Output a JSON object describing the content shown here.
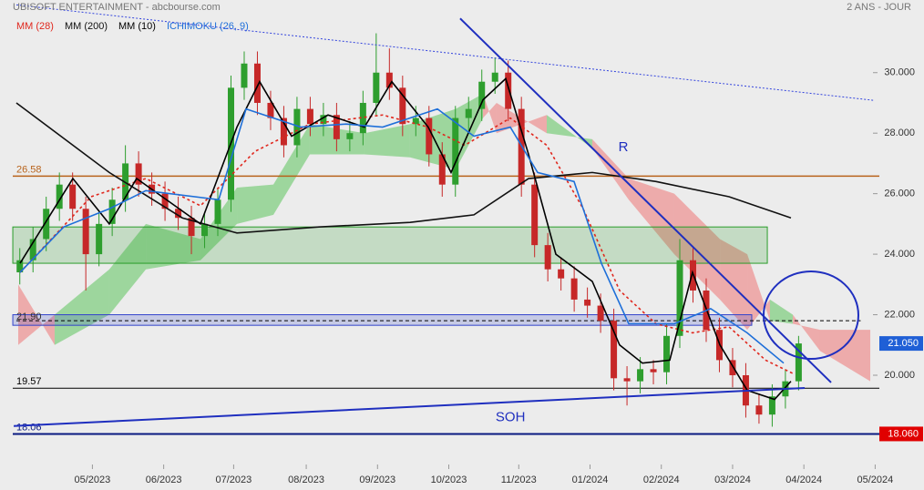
{
  "chart_data": {
    "type": "candlestick",
    "title": "UBISOFT ENTERTAINMENT - abcbourse.com",
    "subtitle": "2 ANS - JOUR",
    "xlim": [
      0,
      70
    ],
    "ylim": [
      17.05,
      32.4
    ],
    "xticks": [
      {
        "value": 7,
        "label": "05/2023"
      },
      {
        "value": 12.4,
        "label": "06/2023"
      },
      {
        "value": 17.7,
        "label": "07/2023"
      },
      {
        "value": 23.2,
        "label": "08/2023"
      },
      {
        "value": 28.6,
        "label": "09/2023"
      },
      {
        "value": 34,
        "label": "10/2023"
      },
      {
        "value": 39.3,
        "label": "11/2023"
      },
      {
        "value": 44.7,
        "label": "01/2024"
      },
      {
        "value": 50.1,
        "label": "02/2024"
      },
      {
        "value": 55.5,
        "label": "03/2024"
      },
      {
        "value": 60.9,
        "label": "04/2024"
      },
      {
        "value": 66.3,
        "label": "05/2024"
      }
    ],
    "yticks": [
      {
        "value": 20,
        "label": "20.000"
      },
      {
        "value": 22,
        "label": "22.000"
      },
      {
        "value": 24,
        "label": "24.000"
      },
      {
        "value": 26,
        "label": "26.000"
      },
      {
        "value": 28,
        "label": "28.000"
      },
      {
        "value": 30,
        "label": "30.000"
      }
    ],
    "candles": {
      "up_color": "#2e9e2e",
      "down_color": "#c62828",
      "x": [
        1.5,
        2.5,
        3.5,
        4.5,
        5.5,
        6.5,
        7.5,
        8.5,
        9.5,
        10.5,
        11.5,
        12.5,
        13.5,
        14.5,
        15.5,
        16.5,
        17.5,
        18.5,
        19.5,
        20.5,
        21.5,
        22.5,
        23.5,
        24.5,
        25.5,
        26.5,
        27.5,
        28.5,
        29.5,
        30.5,
        31.5,
        32.5,
        33.5,
        34.5,
        35.5,
        36.5,
        37.5,
        38.5,
        39.5,
        40.5,
        41.5,
        42.5,
        43.5,
        44.5,
        45.5,
        46.5,
        47.5,
        48.5,
        49.5,
        50.5,
        51.5,
        52.5,
        53.5,
        54.5,
        55.5,
        56.5,
        57.5,
        58.5,
        59.5,
        60.5
      ],
      "open": [
        23.4,
        23.8,
        24.5,
        25.5,
        26.3,
        25.5,
        24.0,
        25.0,
        25.8,
        27.0,
        26.3,
        26.0,
        25.5,
        25.2,
        24.6,
        25.0,
        25.8,
        29.5,
        30.3,
        29.0,
        28.5,
        27.6,
        28.8,
        28.3,
        28.6,
        27.8,
        28.0,
        29.0,
        30.0,
        29.5,
        28.3,
        28.5,
        27.3,
        26.3,
        28.5,
        28.8,
        29.7,
        30.0,
        28.8,
        26.3,
        24.3,
        23.5,
        23.2,
        22.5,
        22.3,
        21.8,
        19.9,
        19.8,
        20.2,
        20.1,
        21.3,
        23.8,
        22.8,
        21.5,
        20.5,
        20.0,
        19.0,
        18.7,
        19.3,
        19.8
      ],
      "high": [
        24.2,
        24.9,
        25.9,
        26.7,
        26.7,
        25.9,
        25.4,
        26.2,
        27.6,
        27.4,
        26.7,
        26.4,
        25.9,
        25.6,
        25.4,
        26.2,
        29.9,
        30.7,
        30.7,
        29.4,
        28.9,
        29.2,
        29.2,
        29.0,
        29.0,
        28.4,
        29.4,
        31.3,
        30.8,
        29.9,
        28.9,
        28.9,
        27.7,
        28.9,
        29.2,
        30.1,
        30.5,
        30.4,
        29.2,
        26.7,
        24.7,
        23.9,
        23.6,
        22.9,
        22.7,
        22.2,
        20.3,
        20.6,
        20.5,
        21.7,
        24.5,
        24.2,
        23.2,
        21.9,
        20.9,
        20.4,
        19.4,
        19.7,
        20.2,
        21.3
      ],
      "low": [
        23.0,
        23.4,
        24.1,
        25.1,
        25.1,
        22.8,
        23.6,
        24.6,
        25.4,
        25.9,
        25.6,
        25.1,
        24.8,
        24.0,
        24.2,
        24.6,
        25.4,
        29.1,
        28.6,
        28.1,
        27.2,
        27.2,
        27.9,
        27.9,
        27.4,
        27.4,
        27.6,
        28.6,
        29.1,
        27.9,
        27.9,
        26.9,
        25.9,
        25.9,
        28.1,
        28.4,
        29.3,
        28.4,
        25.9,
        23.9,
        23.1,
        22.8,
        22.1,
        21.9,
        21.4,
        19.5,
        19.0,
        19.4,
        19.7,
        19.7,
        20.9,
        22.4,
        21.1,
        20.1,
        19.6,
        18.6,
        18.4,
        18.3,
        18.9,
        19.5
      ],
      "close": [
        23.8,
        24.5,
        25.5,
        26.3,
        25.5,
        24.0,
        25.0,
        25.8,
        27.0,
        26.3,
        26.0,
        25.5,
        25.2,
        24.6,
        25.0,
        25.8,
        29.5,
        30.3,
        29.0,
        28.5,
        27.6,
        28.8,
        28.3,
        28.6,
        27.8,
        28.0,
        29.0,
        30.0,
        29.5,
        28.3,
        28.5,
        27.3,
        26.3,
        28.5,
        28.8,
        29.7,
        30.0,
        28.8,
        26.3,
        24.3,
        23.5,
        23.2,
        22.5,
        22.3,
        21.8,
        19.9,
        19.8,
        20.2,
        20.1,
        21.3,
        23.8,
        22.8,
        21.5,
        20.5,
        20.0,
        19.0,
        18.7,
        19.3,
        19.8,
        21.05
      ]
    },
    "kumo": {
      "bull_color": "#5cc45c",
      "bear_color": "#ee7777",
      "x": [
        1.38,
        4.14,
        8.28,
        11.05,
        15.19,
        17.95,
        20.71,
        23.47,
        27.61,
        31.06,
        34.52,
        36.59,
        37.62,
        41.42,
        44.87,
        47.63,
        51.08,
        54.54,
        56.61,
        58.33,
        60.06,
        62.13,
        65.93
      ],
      "span_a": [
        21.0,
        22.0,
        23.5,
        25.0,
        24.5,
        26.2,
        26.3,
        28.3,
        28.0,
        28.3,
        28.8,
        29.3,
        28.0,
        28.6,
        27.5,
        25.8,
        24.0,
        22.5,
        21.5,
        22.5,
        22.0,
        20.8,
        19.8
      ],
      "span_b": [
        23.0,
        21.0,
        22.0,
        23.5,
        23.8,
        25.0,
        25.3,
        27.3,
        27.3,
        27.2,
        26.8,
        28.5,
        29.0,
        28.0,
        27.8,
        26.5,
        26.0,
        24.5,
        24.0,
        21.8,
        21.7,
        21.5,
        21.5
      ]
    },
    "series": [
      {
        "name": "MM (28)",
        "color": "#e0271d",
        "dashed": true,
        "x": [
          1.52,
          6.9,
          11.05,
          15.19,
          19.33,
          23.47,
          28.99,
          32.44,
          35.21,
          38.66,
          41.42,
          44.18,
          46.94,
          49.7,
          52.46,
          55.23,
          57.99,
          60.06
        ],
        "values": [
          23.4,
          25.9,
          26.5,
          25.6,
          27.4,
          28.3,
          28.6,
          28.2,
          27.6,
          28.5,
          27.6,
          25.5,
          22.8,
          21.7,
          21.4,
          21.6,
          20.5,
          20.06
        ]
      },
      {
        "name": "MM (200)",
        "color": "#111111",
        "dashed": false,
        "x": [
          1.24,
          8.28,
          13.81,
          17.95,
          24.16,
          31.06,
          35.9,
          40.04,
          44.87,
          49.7,
          55.23,
          59.92
        ],
        "values": [
          29.0,
          26.7,
          25.2,
          24.7,
          24.9,
          25.05,
          25.3,
          26.5,
          26.7,
          26.4,
          25.9,
          25.2
        ]
      },
      {
        "name": "MM (10)",
        "color": "#000000",
        "dashed": false,
        "x": [
          1.52,
          5.52,
          8.28,
          10.35,
          15.19,
          17.95,
          19.67,
          22.09,
          24.85,
          27.61,
          29.68,
          32.44,
          34.17,
          36.59,
          38.31,
          40.04,
          42.11,
          44.87,
          46.94,
          48.67,
          50.74,
          52.46,
          54.54,
          56.61,
          58.68,
          59.92
        ],
        "values": [
          23.7,
          26.5,
          25.0,
          26.5,
          25.0,
          28.2,
          29.7,
          27.9,
          28.6,
          28.2,
          29.7,
          28.2,
          26.7,
          29.1,
          29.8,
          27.3,
          24.0,
          23.1,
          21.0,
          20.4,
          20.5,
          23.4,
          21.0,
          19.5,
          19.2,
          19.8
        ]
      },
      {
        "name": "ICHIMOKU (26, 9)",
        "color": "#1e6fd9",
        "dashed": false,
        "x": [
          1.52,
          4.83,
          8.28,
          11.05,
          16.57,
          18.64,
          22.78,
          26.23,
          28.99,
          33.14,
          35.9,
          38.66,
          40.73,
          43.49,
          45.56,
          47.63,
          51.08,
          53.84,
          56.61,
          59.37
        ],
        "values": [
          23.4,
          24.9,
          25.5,
          26.1,
          25.8,
          28.8,
          28.2,
          28.3,
          28.2,
          28.8,
          27.9,
          28.2,
          26.7,
          26.4,
          23.7,
          21.7,
          21.7,
          22.2,
          21.4,
          20.4
        ]
      }
    ],
    "levels": [
      {
        "value": 26.58,
        "label": "26.58",
        "color": "#b8631b"
      },
      {
        "value": 19.57,
        "label": "19.57",
        "color": "#000000"
      },
      {
        "value": 18.06,
        "label": "18.06",
        "color": "#0a1a80"
      }
    ],
    "reference_lines": [
      {
        "value": 21.8,
        "x": [
          1.24,
          65.2
        ],
        "color": "#000000"
      }
    ],
    "zones": [
      {
        "x": [
          0.97,
          58.13
        ],
        "y": [
          23.7,
          24.9
        ],
        "color": "#2a9d2a"
      },
      {
        "x": [
          0.97,
          56.95
        ],
        "y": [
          21.65,
          22.0
        ],
        "color": "#3344cc",
        "label": {
          "value": 21.9,
          "label": "21.90"
        }
      }
    ],
    "trendlines": [
      {
        "x": [
          1.24,
          66.27
        ],
        "y": [
          32.24,
          29.08
        ],
        "color": "#3344dd",
        "dashed": true
      },
      {
        "x": [
          34.86,
          62.96
        ],
        "y": [
          31.79,
          19.76
        ],
        "color": "#1f2fbf",
        "dashed": false,
        "label": "R"
      },
      {
        "x": [
          1.04,
          60.96
        ],
        "y": [
          18.32,
          19.58
        ],
        "color": "#1f2fbf",
        "dashed": false,
        "label": "SOH"
      }
    ],
    "price_tags": [
      {
        "value": 21.05,
        "label": "21.050",
        "color": "#1f5fd6"
      },
      {
        "value": 18.06,
        "label": "18.060",
        "color": "#e00000"
      }
    ]
  }
}
